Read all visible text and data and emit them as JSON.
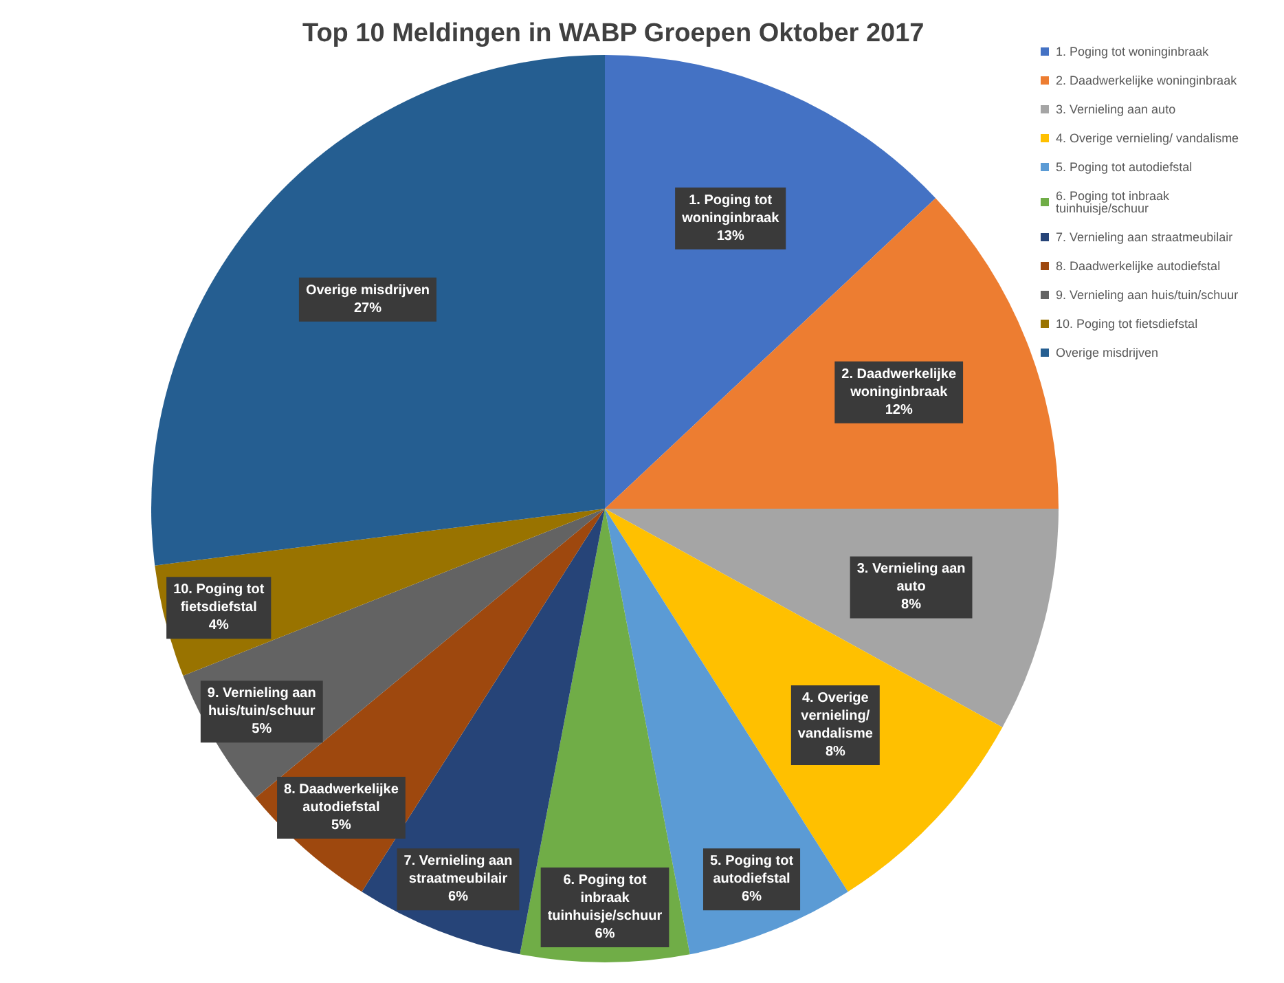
{
  "chart_data": {
    "type": "pie",
    "title": "Top 10 Meldingen in WABP Groepen Oktober 2017",
    "categories": [
      "1. Poging tot woninginbraak",
      "2. Daadwerkelijke woninginbraak",
      "3. Vernieling aan auto",
      "4. Overige vernieling/ vandalisme",
      "5. Poging tot autodiefstal",
      "6. Poging tot inbraak tuinhuisje/schuur",
      "7. Vernieling aan straatmeubilair",
      "8. Daadwerkelijke autodiefstal",
      "9. Vernieling aan huis/tuin/schuur",
      "10. Poging tot fietsdiefstal",
      "Overige misdrijven"
    ],
    "values": [
      13,
      12,
      8,
      8,
      6,
      6,
      6,
      5,
      5,
      4,
      27
    ],
    "value_labels": [
      "13%",
      "12%",
      "8%",
      "8%",
      "6%",
      "6%",
      "6%",
      "5%",
      "5%",
      "4%",
      "27%"
    ],
    "colors": [
      "#4472c4",
      "#ed7d31",
      "#a5a5a5",
      "#ffc000",
      "#5b9bd5",
      "#70ad47",
      "#264478",
      "#9e480e",
      "#636363",
      "#997300",
      "#255e91"
    ],
    "legend": "top right"
  }
}
